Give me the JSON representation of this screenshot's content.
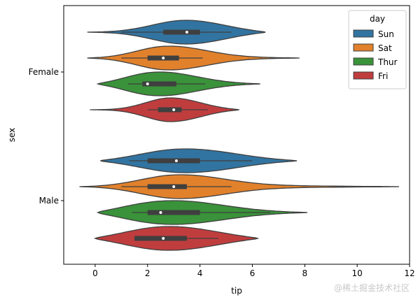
{
  "chart_data": {
    "type": "violin",
    "orientation": "horizontal",
    "xlabel": "tip",
    "ylabel": "sex",
    "xlim": [
      -1.2,
      12.0
    ],
    "xticks": [
      0,
      2,
      4,
      6,
      8,
      10,
      12
    ],
    "categories": [
      "Female",
      "Male"
    ],
    "hue_title": "day",
    "legend_position": "top-right",
    "grid": false,
    "series": [
      {
        "name": "Sun",
        "color": "#3274a1",
        "groups": [
          {
            "category": "Female",
            "min": 1.0,
            "q1": 2.6,
            "median": 3.5,
            "q3": 4.0,
            "max": 5.2,
            "kde_min": -0.3,
            "kde_max": 6.5,
            "peak": 3.5
          },
          {
            "category": "Male",
            "min": 1.3,
            "q1": 2.0,
            "median": 3.1,
            "q3": 4.0,
            "max": 6.0,
            "kde_min": 0.2,
            "kde_max": 7.7,
            "peak": 3.1
          }
        ]
      },
      {
        "name": "Sat",
        "color": "#e1812c",
        "groups": [
          {
            "category": "Female",
            "min": 1.0,
            "q1": 2.0,
            "median": 2.6,
            "q3": 3.2,
            "max": 4.1,
            "kde_min": -0.3,
            "kde_max": 7.8,
            "peak": 2.6
          },
          {
            "category": "Male",
            "min": 1.0,
            "q1": 2.0,
            "median": 3.0,
            "q3": 3.5,
            "max": 5.2,
            "kde_min": -0.6,
            "kde_max": 11.6,
            "peak": 2.9
          }
        ]
      },
      {
        "name": "Thur",
        "color": "#3a923a",
        "groups": [
          {
            "category": "Female",
            "min": 1.25,
            "q1": 1.8,
            "median": 2.0,
            "q3": 3.1,
            "max": 4.2,
            "kde_min": 0.1,
            "kde_max": 6.3,
            "peak": 2.1
          },
          {
            "category": "Male",
            "min": 1.4,
            "q1": 2.0,
            "median": 2.5,
            "q3": 4.0,
            "max": 6.7,
            "kde_min": 0.1,
            "kde_max": 8.1,
            "peak": 2.3
          }
        ]
      },
      {
        "name": "Fri",
        "color": "#c03d3e",
        "groups": [
          {
            "category": "Female",
            "min": 2.0,
            "q1": 2.4,
            "median": 3.0,
            "q3": 3.3,
            "max": 4.3,
            "kde_min": -0.2,
            "kde_max": 5.5,
            "peak": 2.9
          },
          {
            "category": "Male",
            "min": 1.5,
            "q1": 1.5,
            "median": 2.6,
            "q3": 3.5,
            "max": 4.7,
            "kde_min": 0.0,
            "kde_max": 6.2,
            "peak": 2.5
          }
        ]
      }
    ]
  },
  "watermark": "@稀土掘金技术社区"
}
